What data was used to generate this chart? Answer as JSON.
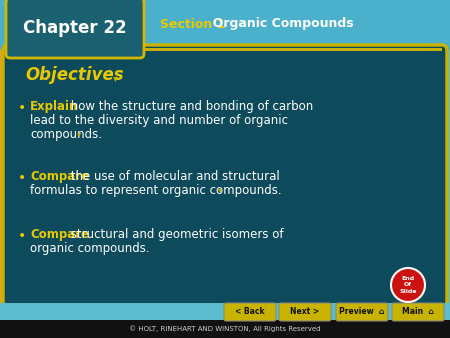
{
  "chapter_box_color_top": "#1a6070",
  "chapter_box_color_bot": "#0a2030",
  "chapter_box_border": "#d4b800",
  "chapter_text": "Chapter 22",
  "section_label": "Section 1",
  "section_label_color": "#e8c800",
  "section_title": "  Organic Compounds",
  "section_title_color": "#ffffff",
  "header_bg": "#4ab0cc",
  "main_bg": "#0d4a5c",
  "main_border_color": "#c8b000",
  "outer_bg_left": "#e8a020",
  "outer_bg": "#5abccc",
  "objectives_text": "Objectives",
  "objectives_color": "#e8c800",
  "bullet_color": "#e8c800",
  "body_text_color": "#ffffff",
  "keyword_color": "#e8c800",
  "bullets": [
    {
      "keyword": "Explain",
      "rest": " how the structure and bonding of carbon\nlead to the diversity and number of organic\ncompounds."
    },
    {
      "keyword": "Compare",
      "rest": " the use of molecular and structural\nformulas to represent organic compounds."
    },
    {
      "keyword": "Compare",
      "rest": " structural and geometric isomers of\norganic compounds."
    }
  ],
  "footer_text": "© HOLT, RINEHART AND WINSTON, All Rights Reserved",
  "footer_color": "#cccccc",
  "footer_bg": "#111111",
  "nav_buttons": [
    "< Back",
    "Next >",
    "Preview",
    "Main"
  ],
  "nav_bg": "#c8b400",
  "nav_text_color": "#111111",
  "end_slide_color": "#cc1111",
  "end_slide_text": "End\nOf\nSlide",
  "arrow_color": "#c8b000"
}
